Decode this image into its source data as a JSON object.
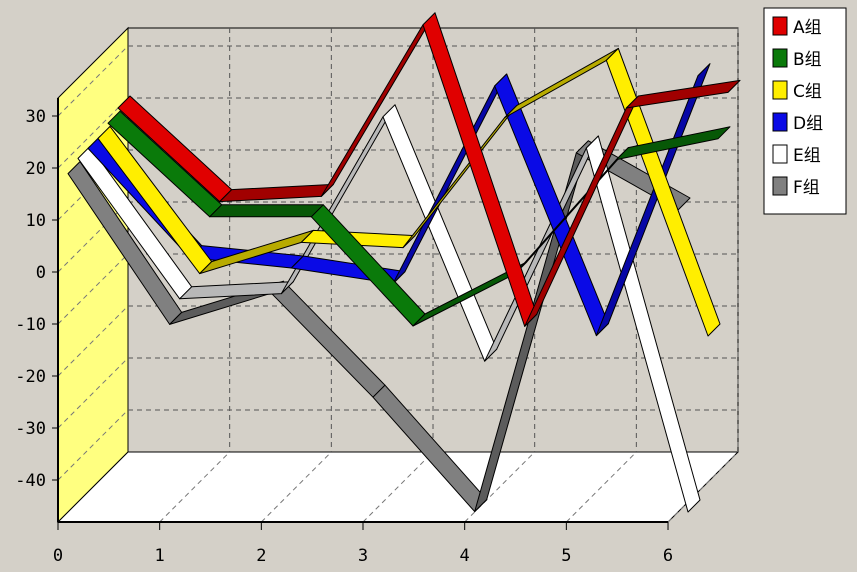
{
  "chart_data": {
    "type": "line",
    "style": "3d-ribbon",
    "title": "",
    "xlabel": "",
    "ylabel": "",
    "x_ticks": [
      "0",
      "1",
      "2",
      "3",
      "4",
      "5",
      "6"
    ],
    "y_ticks": [
      "30",
      "20",
      "10",
      "0",
      "-10",
      "-20",
      "-30",
      "-40"
    ],
    "xlim": [
      0,
      6
    ],
    "ylim": [
      -45,
      40
    ],
    "grid": true,
    "grid_style": "dashed",
    "legend_position": "top-right",
    "walls": {
      "left": "#ffff80",
      "floor": "#ffffff",
      "back": "#d4d0c8"
    },
    "series": [
      {
        "name": "A组",
        "color": "#e00000",
        "x": [
          0,
          1,
          2,
          3,
          4,
          5,
          6
        ],
        "y": [
          20,
          2,
          3,
          36,
          -22,
          20,
          23
        ]
      },
      {
        "name": "B组",
        "color": "#0a7a0a",
        "x": [
          0,
          1,
          2,
          3,
          4,
          5,
          6
        ],
        "y": [
          19,
          1,
          1,
          -20,
          -10,
          12,
          16
        ]
      },
      {
        "name": "C组",
        "color": "#ffee00",
        "x": [
          0,
          1,
          2,
          3,
          4,
          5,
          6
        ],
        "y": [
          18,
          -8,
          -2,
          -3,
          22,
          33,
          -20
        ]
      },
      {
        "name": "D组",
        "color": "#0a0ae6",
        "x": [
          0,
          1,
          2,
          3,
          4,
          5,
          6
        ],
        "y": [
          18,
          -3,
          -5,
          -8,
          30,
          -18,
          32
        ]
      },
      {
        "name": "E组",
        "color": "#ffffff",
        "x": [
          0,
          1,
          2,
          3,
          4,
          5,
          6
        ],
        "y": [
          18,
          -9,
          -8,
          26,
          -21,
          20,
          -50
        ]
      },
      {
        "name": "F组",
        "color": "#808080",
        "x": [
          0,
          1,
          2,
          3,
          4,
          5,
          6
        ],
        "y": [
          17,
          -12,
          -6,
          -26,
          -48,
          21,
          10
        ]
      }
    ]
  }
}
